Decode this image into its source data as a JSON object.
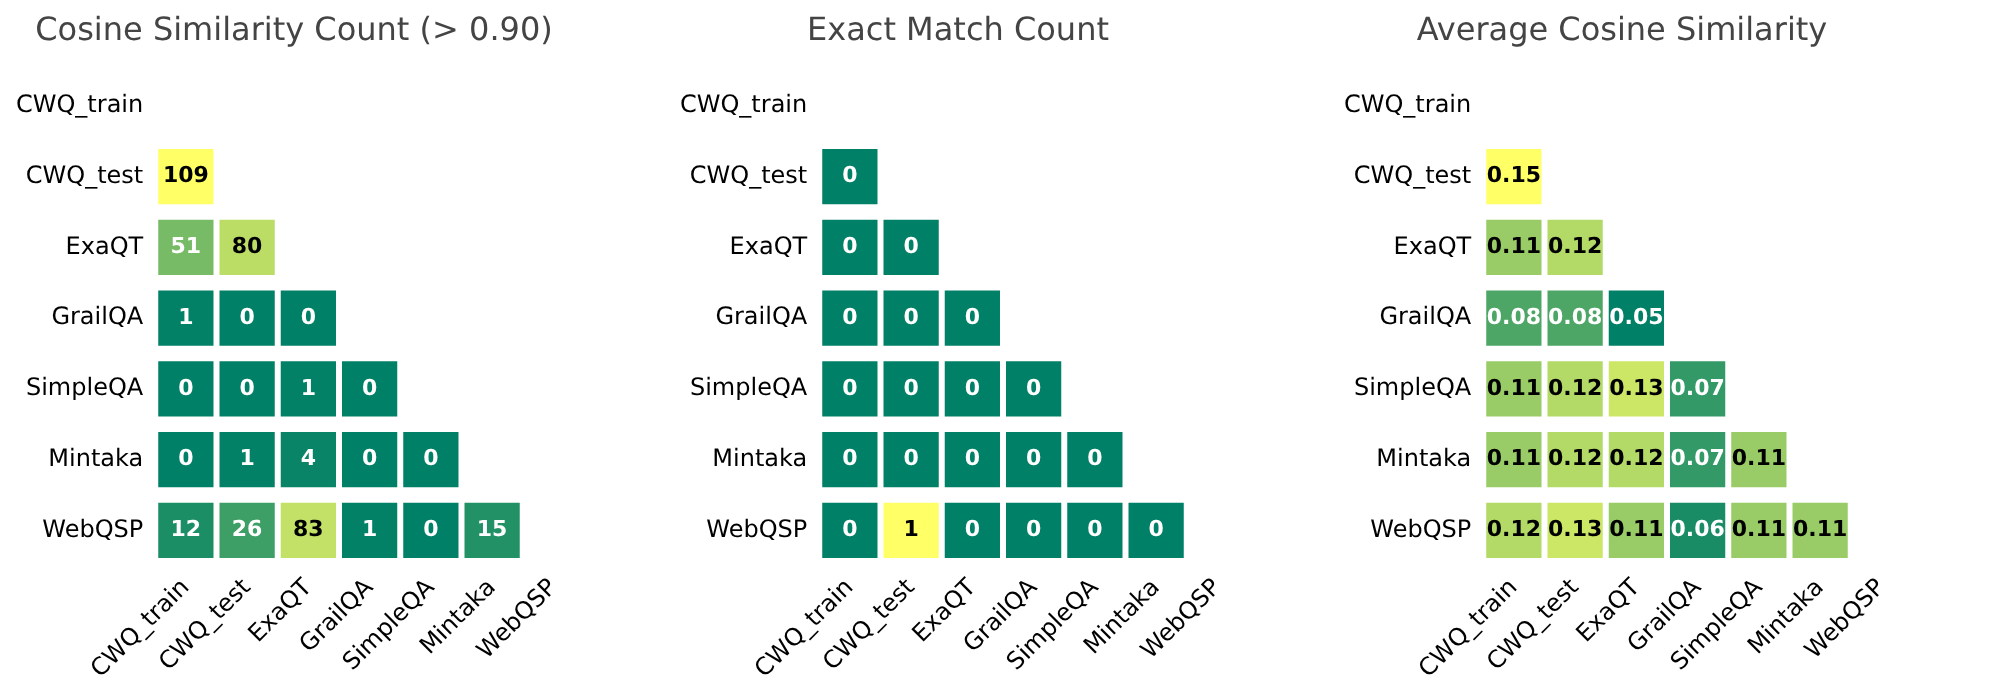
{
  "chart_data": [
    {
      "type": "heatmap",
      "title": "Cosine Similarity Count (> 0.90)",
      "grid": false,
      "data_labels": true,
      "categories": [
        "CWQ_train",
        "CWQ_test",
        "ExaQT",
        "GrailQA",
        "SimpleQA",
        "Mintaka",
        "WebQSP"
      ],
      "y_categories": [
        "CWQ_train",
        "CWQ_test",
        "ExaQT",
        "GrailQA",
        "SimpleQA",
        "Mintaka",
        "WebQSP"
      ],
      "cells": [
        [
          null,
          null,
          null,
          null,
          null,
          null,
          null
        ],
        [
          109,
          null,
          null,
          null,
          null,
          null,
          null
        ],
        [
          51,
          80,
          null,
          null,
          null,
          null,
          null
        ],
        [
          1,
          0,
          0,
          null,
          null,
          null,
          null
        ],
        [
          0,
          0,
          1,
          0,
          null,
          null,
          null
        ],
        [
          0,
          1,
          4,
          0,
          0,
          null,
          null
        ],
        [
          12,
          26,
          83,
          1,
          0,
          15,
          null
        ]
      ]
    },
    {
      "type": "heatmap",
      "title": "Exact Match Count",
      "grid": false,
      "data_labels": true,
      "categories": [
        "CWQ_train",
        "CWQ_test",
        "ExaQT",
        "GrailQA",
        "SimpleQA",
        "Mintaka",
        "WebQSP"
      ],
      "y_categories": [
        "CWQ_train",
        "CWQ_test",
        "ExaQT",
        "GrailQA",
        "SimpleQA",
        "Mintaka",
        "WebQSP"
      ],
      "cells": [
        [
          null,
          null,
          null,
          null,
          null,
          null,
          null
        ],
        [
          0,
          null,
          null,
          null,
          null,
          null,
          null
        ],
        [
          0,
          0,
          null,
          null,
          null,
          null,
          null
        ],
        [
          0,
          0,
          0,
          null,
          null,
          null,
          null
        ],
        [
          0,
          0,
          0,
          0,
          null,
          null,
          null
        ],
        [
          0,
          0,
          0,
          0,
          0,
          null,
          null
        ],
        [
          0,
          1,
          0,
          0,
          0,
          0,
          null
        ]
      ]
    },
    {
      "type": "heatmap",
      "title": "Average Cosine Similarity",
      "grid": false,
      "data_labels": true,
      "categories": [
        "CWQ_train",
        "CWQ_test",
        "ExaQT",
        "GrailQA",
        "SimpleQA",
        "Mintaka",
        "WebQSP"
      ],
      "y_categories": [
        "CWQ_train",
        "CWQ_test",
        "ExaQT",
        "GrailQA",
        "SimpleQA",
        "Mintaka",
        "WebQSP"
      ],
      "cells": [
        [
          null,
          null,
          null,
          null,
          null,
          null,
          null
        ],
        [
          0.15,
          null,
          null,
          null,
          null,
          null,
          null
        ],
        [
          0.11,
          0.12,
          null,
          null,
          null,
          null,
          null
        ],
        [
          0.08,
          0.08,
          0.05,
          null,
          null,
          null,
          null
        ],
        [
          0.11,
          0.12,
          0.13,
          0.07,
          null,
          null,
          null
        ],
        [
          0.11,
          0.12,
          0.12,
          0.07,
          0.11,
          null,
          null
        ],
        [
          0.12,
          0.13,
          0.11,
          0.06,
          0.11,
          0.11,
          null
        ]
      ]
    }
  ]
}
